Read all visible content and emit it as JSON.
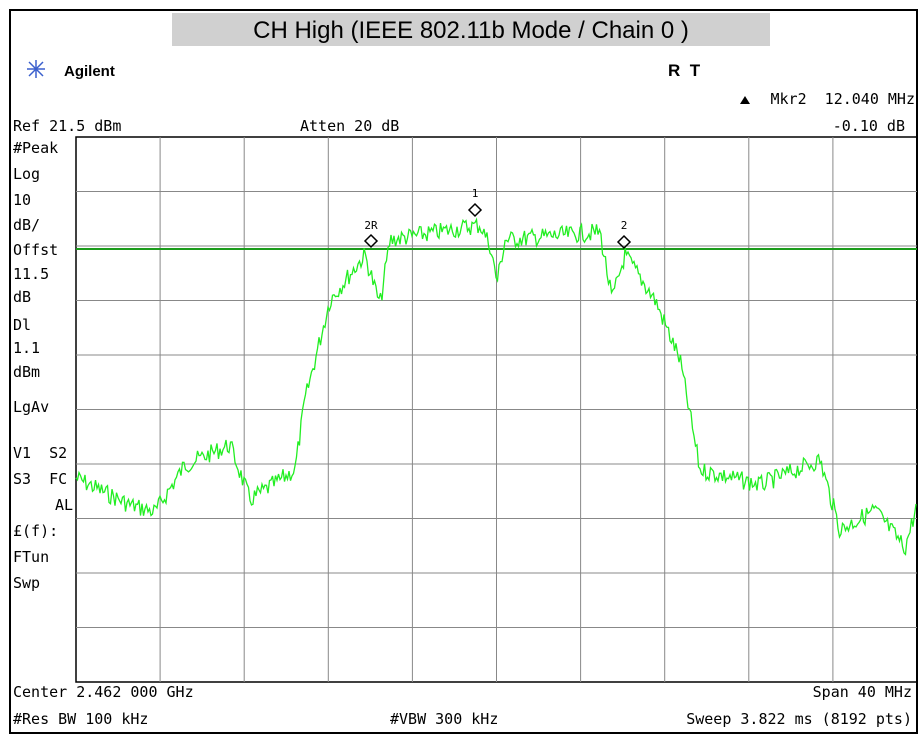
{
  "title": "CH High (IEEE 802.11b Mode / Chain 0 )",
  "header": {
    "brand": "Agilent",
    "status": "R  T",
    "marker_readout": "Mkr2  12.040 MHz",
    "marker_value": "-0.10 dB",
    "ref_level": "Ref 21.5 dBm",
    "attenuation": "Atten 20 dB"
  },
  "side_labels": [
    "#Peak",
    "Log",
    "10",
    "dB/",
    "Offst",
    "11.5",
    "dB",
    "Dl",
    "1.1",
    "dBm",
    "LgAv",
    "V1  S2",
    "S3  FC",
    "AL",
    "£(f):",
    "FTun",
    "Swp"
  ],
  "markers": [
    "1",
    "2R",
    "2"
  ],
  "footer": {
    "center": "Center 2.462 000 GHz",
    "span": "Span 40 MHz",
    "rbw": "#Res BW 100 kHz",
    "vbw": "#VBW 300 kHz",
    "sweep": "Sweep 3.822 ms (8192 pts)"
  }
}
